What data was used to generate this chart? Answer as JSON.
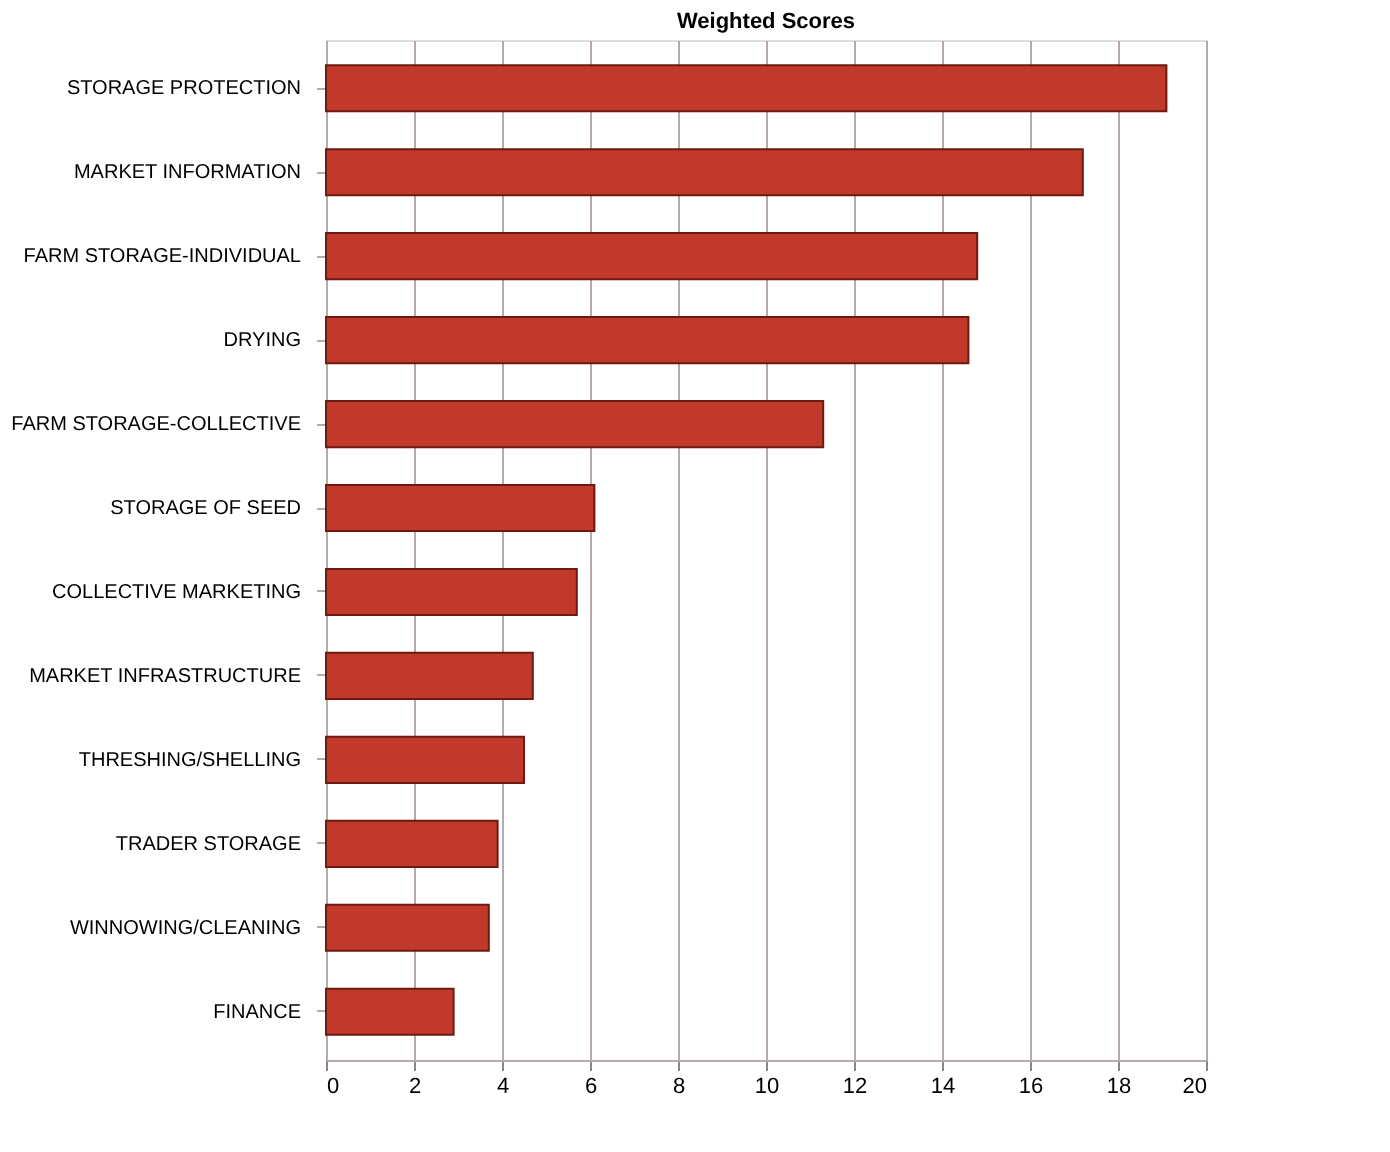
{
  "chart_data": {
    "type": "bar",
    "orientation": "horizontal",
    "title": "Weighted Scores",
    "categories": [
      "STORAGE PROTECTION",
      "MARKET INFORMATION",
      "FARM STORAGE-INDIVIDUAL",
      "DRYING",
      "FARM STORAGE-COLLECTIVE",
      "STORAGE OF SEED",
      "COLLECTIVE MARKETING",
      "MARKET INFRASTRUCTURE",
      "THRESHING/SHELLING",
      "TRADER STORAGE",
      "WINNOWING/CLEANING",
      "FINANCE"
    ],
    "values": [
      19.1,
      17.2,
      14.8,
      14.6,
      11.3,
      6.1,
      5.7,
      4.7,
      4.5,
      3.9,
      3.7,
      2.9
    ],
    "color": "#c0392b",
    "xlim": [
      0,
      20
    ],
    "xticks": [
      0,
      2,
      4,
      6,
      8,
      10,
      12,
      14,
      16,
      18,
      20
    ],
    "grid": "x"
  }
}
